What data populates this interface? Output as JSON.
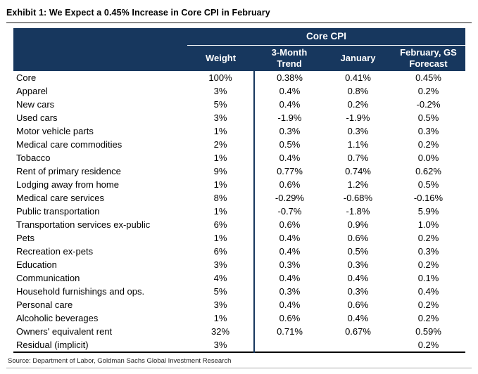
{
  "exhibit": {
    "title": "Exhibit 1: We Expect a 0.45% Increase in Core CPI in February",
    "source": "Source: Department of Labor, Goldman Sachs Global Investment Research"
  },
  "colors": {
    "header_navy": "#17375e",
    "header_text": "#ffffff",
    "body_text": "#000000"
  },
  "chart_data": {
    "type": "table",
    "title": "Core CPI",
    "columns": [
      "",
      "Weight",
      "3-Month Trend",
      "January",
      "February, GS Forecast"
    ],
    "rows": [
      [
        "Core",
        "100%",
        "0.38%",
        "0.41%",
        "0.45%"
      ],
      [
        "Apparel",
        "3%",
        "0.4%",
        "0.8%",
        "0.2%"
      ],
      [
        "New cars",
        "5%",
        "0.4%",
        "0.2%",
        "-0.2%"
      ],
      [
        "Used cars",
        "3%",
        "-1.9%",
        "-1.9%",
        "0.5%"
      ],
      [
        "Motor vehicle parts",
        "1%",
        "0.3%",
        "0.3%",
        "0.3%"
      ],
      [
        "Medical care commodities",
        "2%",
        "0.5%",
        "1.1%",
        "0.2%"
      ],
      [
        "Tobacco",
        "1%",
        "0.4%",
        "0.7%",
        "0.0%"
      ],
      [
        "Rent of primary residence",
        "9%",
        "0.77%",
        "0.74%",
        "0.62%"
      ],
      [
        "Lodging away from home",
        "1%",
        "0.6%",
        "1.2%",
        "0.5%"
      ],
      [
        "Medical care services",
        "8%",
        "-0.29%",
        "-0.68%",
        "-0.16%"
      ],
      [
        "Public transportation",
        "1%",
        "-0.7%",
        "-1.8%",
        "5.9%"
      ],
      [
        "Transportation services ex-public",
        "6%",
        "0.6%",
        "0.9%",
        "1.0%"
      ],
      [
        "Pets",
        "1%",
        "0.4%",
        "0.6%",
        "0.2%"
      ],
      [
        "Recreation ex-pets",
        "6%",
        "0.4%",
        "0.5%",
        "0.3%"
      ],
      [
        "Education",
        "3%",
        "0.3%",
        "0.3%",
        "0.2%"
      ],
      [
        "Communication",
        "4%",
        "0.4%",
        "0.4%",
        "0.1%"
      ],
      [
        "Household furnishings and ops.",
        "5%",
        "0.3%",
        "0.3%",
        "0.4%"
      ],
      [
        "Personal care",
        "3%",
        "0.4%",
        "0.6%",
        "0.2%"
      ],
      [
        "Alcoholic beverages",
        "1%",
        "0.6%",
        "0.4%",
        "0.2%"
      ],
      [
        "Owners' equivalent rent",
        "32%",
        "0.71%",
        "0.67%",
        "0.59%"
      ],
      [
        "Residual (implicit)",
        "3%",
        "",
        "",
        "0.2%"
      ]
    ]
  }
}
